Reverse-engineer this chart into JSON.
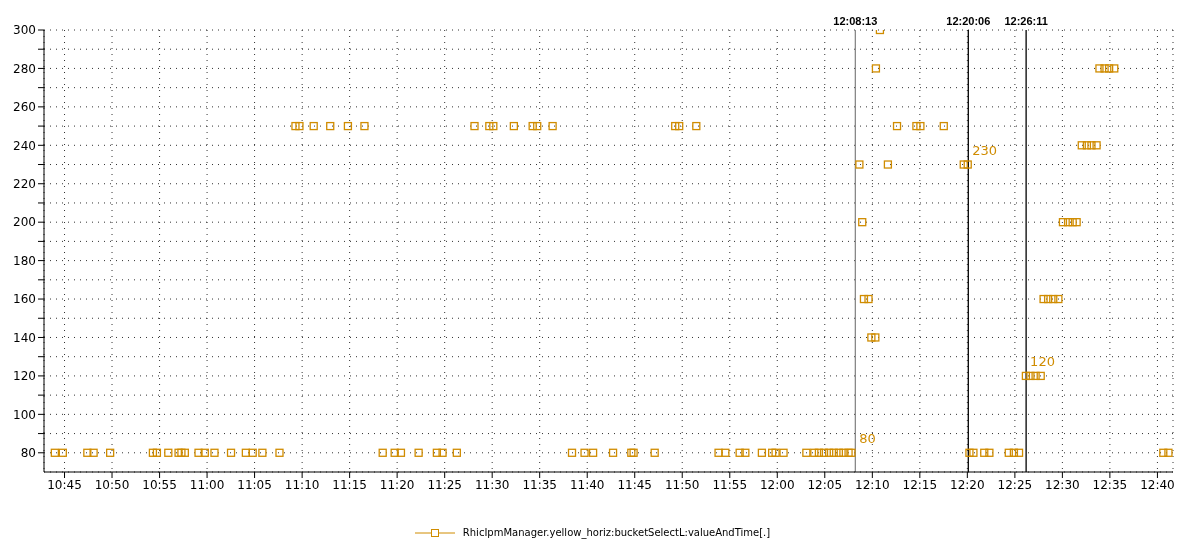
{
  "chart_data": {
    "type": "scatter",
    "marker": "square",
    "grid": true,
    "legend": "bottom",
    "xlim": [
      10.714,
      12.694
    ],
    "xticks": [
      {
        "value": 10.75,
        "label": "10:45"
      },
      {
        "value": 10.8333,
        "label": "10:50"
      },
      {
        "value": 10.9167,
        "label": "10:55"
      },
      {
        "value": 11,
        "label": "11:00"
      },
      {
        "value": 11.0833,
        "label": "11:05"
      },
      {
        "value": 11.1667,
        "label": "11:10"
      },
      {
        "value": 11.25,
        "label": "11:15"
      },
      {
        "value": 11.3333,
        "label": "11:20"
      },
      {
        "value": 11.4167,
        "label": "11:25"
      },
      {
        "value": 11.5,
        "label": "11:30"
      },
      {
        "value": 11.5833,
        "label": "11:35"
      },
      {
        "value": 11.6667,
        "label": "11:40"
      },
      {
        "value": 11.75,
        "label": "11:45"
      },
      {
        "value": 11.8333,
        "label": "11:50"
      },
      {
        "value": 11.9167,
        "label": "11:55"
      },
      {
        "value": 12,
        "label": "12:00"
      },
      {
        "value": 12.0833,
        "label": "12:05"
      },
      {
        "value": 12.1667,
        "label": "12:10"
      },
      {
        "value": 12.25,
        "label": "12:15"
      },
      {
        "value": 12.3333,
        "label": "12:20"
      },
      {
        "value": 12.4167,
        "label": "12:25"
      },
      {
        "value": 12.5,
        "label": "12:30"
      },
      {
        "value": 12.5833,
        "label": "12:35"
      },
      {
        "value": 12.6667,
        "label": "12:40"
      }
    ],
    "ylim": [
      70,
      300
    ],
    "yticks": [
      80,
      {
        "value": 90,
        "label": null
      },
      100,
      {
        "value": 110,
        "label": null
      },
      120,
      {
        "value": 130,
        "label": null
      },
      140,
      {
        "value": 150,
        "label": null
      },
      160,
      {
        "value": 170,
        "label": null
      },
      180,
      {
        "value": 190,
        "label": null
      },
      200,
      {
        "value": 210,
        "label": null
      },
      220,
      {
        "value": 230,
        "label": null
      },
      240,
      {
        "value": 250,
        "label": null
      },
      260,
      {
        "value": 270,
        "label": null
      },
      280,
      {
        "value": 290,
        "label": null
      },
      300
    ],
    "ref_lines": [
      {
        "axis": "x",
        "value": 12.1369,
        "label": "12:08:13",
        "color": "#888888"
      },
      {
        "axis": "x",
        "value": 12.335,
        "label": "12:20:06",
        "color": "#000000"
      },
      {
        "axis": "x",
        "value": 12.4364,
        "label": "12:26:11",
        "color": "#000000"
      }
    ],
    "annotations": [
      {
        "text": "80",
        "x": 12.1369,
        "y": 80
      },
      {
        "text": "230",
        "x": 12.335,
        "y": 230
      },
      {
        "text": "120",
        "x": 12.4364,
        "y": 120
      }
    ],
    "series": [
      {
        "name": "RhicIpmManager.yellow_horiz:bucketSelectL:valueAndTime[.]",
        "color": "#d08c00",
        "x": [
          10.733,
          10.747,
          10.79,
          10.801,
          10.83,
          10.905,
          10.912,
          10.932,
          10.95,
          10.955,
          10.961,
          10.985,
          10.996,
          11.013,
          11.042,
          11.068,
          11.08,
          11.097,
          11.127,
          11.155,
          11.162,
          11.187,
          11.216,
          11.247,
          11.276,
          11.308,
          11.329,
          11.34,
          11.371,
          11.403,
          11.413,
          11.438,
          11.469,
          11.495,
          11.502,
          11.538,
          11.571,
          11.579,
          11.606,
          11.64,
          11.662,
          11.677,
          11.712,
          11.744,
          11.748,
          11.785,
          11.821,
          11.828,
          11.858,
          11.897,
          11.909,
          11.934,
          11.944,
          11.973,
          11.991,
          11.997,
          12.011,
          12.051,
          12.065,
          12.073,
          12.082,
          12.091,
          12.099,
          12.108,
          12.116,
          12.125,
          12.13,
          12.144,
          12.149,
          12.152,
          12.16,
          12.165,
          12.172,
          12.173,
          12.18,
          12.194,
          12.21,
          12.244,
          12.251,
          12.292,
          12.327,
          12.334,
          12.337,
          12.344,
          12.363,
          12.372,
          12.406,
          12.415,
          12.424,
          12.436,
          12.444,
          12.453,
          12.462,
          12.467,
          12.475,
          12.484,
          12.493,
          12.501,
          12.51,
          12.518,
          12.525,
          12.534,
          12.543,
          12.551,
          12.56,
          12.565,
          12.574,
          12.582,
          12.591,
          12.677,
          12.686
        ],
        "values": [
          80,
          80,
          80,
          80,
          80,
          80,
          80,
          80,
          80,
          80,
          80,
          80,
          80,
          80,
          80,
          80,
          80,
          80,
          80,
          250,
          250,
          250,
          250,
          250,
          250,
          80,
          80,
          80,
          80,
          80,
          80,
          80,
          250,
          250,
          250,
          250,
          250,
          250,
          250,
          80,
          80,
          80,
          80,
          80,
          80,
          80,
          250,
          250,
          250,
          80,
          80,
          80,
          80,
          80,
          80,
          80,
          80,
          80,
          80,
          80,
          80,
          80,
          80,
          80,
          80,
          80,
          80,
          230,
          200,
          160,
          160,
          140,
          140,
          280,
          300,
          230,
          250,
          250,
          250,
          250,
          230,
          230,
          80,
          80,
          80,
          80,
          80,
          80,
          80,
          120,
          120,
          120,
          120,
          160,
          160,
          160,
          160,
          200,
          200,
          200,
          200,
          240,
          240,
          240,
          240,
          280,
          280,
          280,
          280,
          80,
          80
        ]
      }
    ]
  }
}
